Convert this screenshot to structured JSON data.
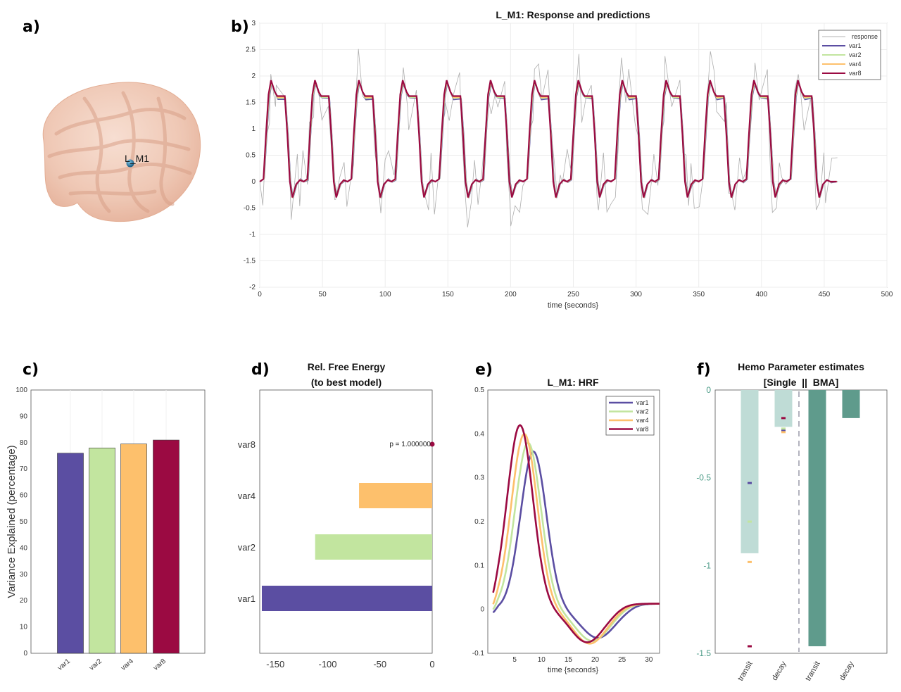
{
  "panels": {
    "a": {
      "letter": "a)",
      "region_label": "L_M1"
    },
    "b": {
      "letter": "b)"
    },
    "c": {
      "letter": "c)"
    },
    "d": {
      "letter": "d)"
    },
    "e": {
      "letter": "e)"
    },
    "f": {
      "letter": "f)"
    }
  },
  "colors": {
    "var1": "#5b4ea2",
    "var2": "#c2e59f",
    "var4": "#fdc06c",
    "var8": "#9b0a42",
    "response": "#9a9a9a",
    "single": "#bfdcd6",
    "bma": "#5f9b8c",
    "f_tick": "#4a9a86"
  },
  "chart_data": [
    {
      "id": "b",
      "type": "line",
      "title": "L_M1: Response and predictions",
      "xlabel": "time {seconds}",
      "ylabel": "",
      "xlim": [
        0,
        500
      ],
      "ylim": [
        -2,
        3
      ],
      "xticks": [
        "0",
        "50",
        "100",
        "150",
        "200",
        "250",
        "300",
        "350",
        "400",
        "450",
        "500"
      ],
      "yticks": [
        "-2",
        "-1.5",
        "-1",
        "-0.5",
        "0",
        "0.5",
        "1",
        "1.5",
        "2",
        "2.5",
        "3"
      ],
      "grid": true,
      "legend_position": "top-right",
      "legend": [
        "response",
        "var1",
        "var2",
        "var4",
        "var8"
      ],
      "block_onsets": [
        0,
        35,
        70,
        105,
        140,
        175,
        210,
        245,
        280,
        315,
        350,
        385,
        420
      ],
      "block_duration": 20,
      "block_plateau": 1.62,
      "block_peak": 1.92,
      "undershoot": -0.3,
      "end_time": 460
    },
    {
      "id": "c",
      "type": "bar",
      "title": "",
      "xlabel": "",
      "ylabel": "Variance Explained (percentage)",
      "categories": [
        "var1",
        "var2",
        "var4",
        "var8"
      ],
      "values": [
        76,
        78,
        79.5,
        81
      ],
      "ylim": [
        0,
        100
      ],
      "yticks": [
        "0",
        "10",
        "20",
        "30",
        "40",
        "50",
        "60",
        "70",
        "80",
        "90",
        "100"
      ]
    },
    {
      "id": "d",
      "type": "bar",
      "title": "Rel. Free Energy",
      "subtitle": "(to best model)",
      "categories": [
        "var1",
        "var2",
        "var4",
        "var8"
      ],
      "values": [
        -163,
        -112,
        -70,
        0
      ],
      "xlim": [
        -165,
        0
      ],
      "xticks": [
        "-150",
        "-100",
        "-50",
        "0"
      ],
      "annotation": "p = 1.000000"
    },
    {
      "id": "e",
      "type": "line",
      "title": "L_M1: HRF",
      "xlabel": "time {seconds}",
      "xlim": [
        0,
        32
      ],
      "ylim": [
        -0.1,
        0.5
      ],
      "xticks": [
        "5",
        "10",
        "15",
        "20",
        "25",
        "30"
      ],
      "yticks": [
        "-0.1",
        "0",
        "0.1",
        "0.2",
        "0.3",
        "0.4",
        "0.5"
      ],
      "legend_position": "top-right",
      "series": [
        {
          "name": "var1",
          "peak_time": 8.5,
          "peak": 0.36,
          "trough_time": 20.5,
          "trough": -0.065
        },
        {
          "name": "var2",
          "peak_time": 7.5,
          "peak": 0.38,
          "trough_time": 19.5,
          "trough": -0.072
        },
        {
          "name": "var4",
          "peak_time": 6.8,
          "peak": 0.4,
          "trough_time": 19.0,
          "trough": -0.078
        },
        {
          "name": "var8",
          "peak_time": 6.0,
          "peak": 0.42,
          "trough_time": 18.5,
          "trough": -0.075
        }
      ]
    },
    {
      "id": "f",
      "type": "bar",
      "title": "Hemo Parameter estimates",
      "subtitle": "[Single  ||  BMA]",
      "categories": [
        "transit",
        "decay",
        "transit",
        "decay"
      ],
      "values": [
        -0.93,
        -0.21,
        -1.46,
        -0.16
      ],
      "groups": [
        "Single",
        "Single",
        "BMA",
        "BMA"
      ],
      "ylim": [
        -1.5,
        0
      ],
      "yticks": [
        "0",
        "-0.5",
        "-1",
        "-1.5"
      ],
      "points": [
        {
          "bar": 0,
          "value": -0.53,
          "model": "var1"
        },
        {
          "bar": 0,
          "value": -0.75,
          "model": "var2"
        },
        {
          "bar": 0,
          "value": -0.98,
          "model": "var4"
        },
        {
          "bar": 0,
          "value": -1.46,
          "model": "var8"
        },
        {
          "bar": 1,
          "value": -0.23,
          "model": "var1"
        },
        {
          "bar": 1,
          "value": -0.22,
          "model": "var2"
        },
        {
          "bar": 1,
          "value": -0.24,
          "model": "var4"
        },
        {
          "bar": 1,
          "value": -0.16,
          "model": "var8"
        }
      ]
    }
  ]
}
